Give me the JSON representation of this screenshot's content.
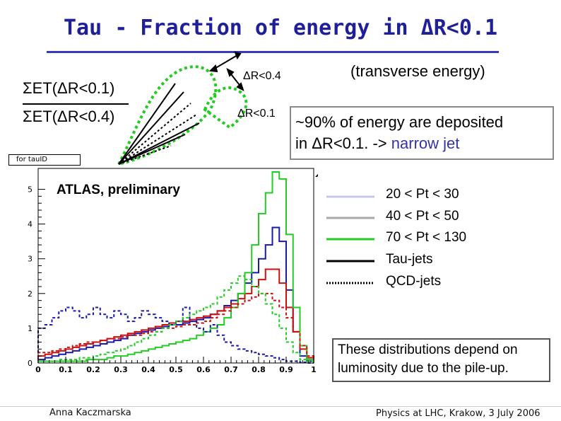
{
  "slide": {
    "title": "Tau - Fraction of energy in ΔR<0.1",
    "formula_numerator": "ΣET(ΔR<0.1)",
    "formula_denominator": "ΣET(ΔR<0.4)",
    "cone_outer_label": "ΔR<0.4",
    "cone_inner_label": "ΔR<0.1",
    "transverse_note": "(transverse energy)",
    "info_line1": "~90% of energy are deposited",
    "info_line2_prefix": "in ΔR<0.1. ->",
    "info_line2_highlight": "narrow jet",
    "pileup_note": "These distributions depend on luminosity due to the pile-up.",
    "tau_id_label": "for tauID",
    "atlas_label": "ATLAS, preliminary",
    "author": "Anna Kaczmarska",
    "conference": "Physics at LHC, Krakow,  3 July 2006"
  },
  "colors": {
    "title": "#1f1f99",
    "pt_20_30": "#c8c8ee",
    "pt_40_50": "#a8a8a8",
    "pt_70_130": "#22cc22",
    "tau": "#000000",
    "highlight": "#3333a3",
    "blue_hist": "#1a1aa8",
    "red_hist": "#cc1010",
    "green_hist": "#22cc22"
  },
  "chart_data": {
    "type": "line",
    "style": "step-histogram",
    "xlim": [
      0,
      1
    ],
    "ylim": [
      0,
      5.5
    ],
    "xticks": [
      0,
      0.1,
      0.2,
      0.3,
      0.4,
      0.5,
      0.6,
      0.7,
      0.8,
      0.9,
      1
    ],
    "xtick_labels": [
      "0",
      "0.1",
      "0.2",
      "0.3",
      "0.4",
      "0.5",
      "0.6",
      "0.7",
      "0.8",
      "0.9",
      "1"
    ],
    "yticks": [
      0,
      1,
      2,
      3,
      4,
      5
    ],
    "ytick_labels": [
      "0",
      "1",
      "2",
      "3",
      "4",
      "5"
    ],
    "legend": [
      {
        "label": "20 < Pt < 30",
        "color": "#c8c8ee",
        "style": "solid"
      },
      {
        "label": "40 < Pt < 50",
        "color": "#a8a8a8",
        "style": "solid"
      },
      {
        "label": "70 < Pt < 130",
        "color": "#22cc22",
        "style": "solid"
      },
      {
        "label": "Tau-jets",
        "color": "#000000",
        "style": "solid"
      },
      {
        "label": "QCD-jets",
        "color": "#000000",
        "style": "dotted"
      }
    ],
    "bin_edges": [
      0,
      0.025,
      0.05,
      0.075,
      0.1,
      0.125,
      0.15,
      0.175,
      0.2,
      0.225,
      0.25,
      0.275,
      0.3,
      0.325,
      0.35,
      0.375,
      0.4,
      0.425,
      0.45,
      0.475,
      0.5,
      0.525,
      0.55,
      0.575,
      0.6,
      0.625,
      0.65,
      0.675,
      0.7,
      0.725,
      0.75,
      0.775,
      0.8,
      0.825,
      0.85,
      0.875,
      0.9,
      0.925,
      0.95,
      0.975,
      1
    ],
    "series": [
      {
        "color": "#1a1aa8",
        "dash": "solid",
        "values": [
          0.1,
          0.15,
          0.2,
          0.25,
          0.3,
          0.35,
          0.4,
          0.45,
          0.5,
          0.55,
          0.6,
          0.65,
          0.7,
          0.8,
          0.85,
          0.9,
          0.95,
          1.0,
          1.05,
          1.1,
          1.1,
          1.15,
          1.2,
          1.25,
          1.3,
          1.4,
          1.5,
          1.65,
          1.8,
          2.0,
          2.3,
          2.6,
          3.0,
          3.4,
          3.9,
          3.5,
          2.1,
          0.9,
          0.2,
          0.05
        ]
      },
      {
        "color": "#cc1010",
        "dash": "solid",
        "values": [
          0.2,
          0.25,
          0.3,
          0.35,
          0.4,
          0.45,
          0.5,
          0.55,
          0.6,
          0.65,
          0.7,
          0.75,
          0.8,
          0.85,
          0.9,
          0.95,
          1.0,
          1.05,
          1.1,
          1.15,
          1.2,
          1.2,
          1.25,
          1.3,
          1.35,
          1.4,
          1.5,
          1.6,
          1.7,
          1.85,
          2.0,
          2.2,
          2.4,
          2.7,
          2.7,
          2.3,
          1.6,
          0.9,
          0.4,
          0.15
        ]
      },
      {
        "color": "#22cc22",
        "dash": "solid",
        "values": [
          0.05,
          0.05,
          0.05,
          0.05,
          0.05,
          0.05,
          0.05,
          0.1,
          0.1,
          0.1,
          0.15,
          0.2,
          0.2,
          0.25,
          0.3,
          0.35,
          0.4,
          0.45,
          0.5,
          0.55,
          0.6,
          0.65,
          0.7,
          0.8,
          0.9,
          1.0,
          1.1,
          1.3,
          1.6,
          2.0,
          2.6,
          3.4,
          4.3,
          4.9,
          5.5,
          5.3,
          3.7,
          1.6,
          0.5,
          0.1
        ]
      },
      {
        "color": "#1a1aa8",
        "dash": "dashed",
        "values": [
          1.0,
          1.1,
          1.3,
          1.5,
          1.6,
          1.5,
          1.3,
          1.4,
          1.6,
          1.4,
          1.3,
          1.5,
          1.4,
          1.2,
          1.3,
          1.5,
          1.4,
          1.3,
          1.2,
          1.1,
          1.2,
          1.6,
          1.2,
          1.0,
          0.9,
          1.1,
          0.8,
          0.6,
          0.5,
          0.4,
          0.35,
          0.3,
          0.25,
          0.2,
          0.15,
          0.1,
          0.05,
          0.05,
          0.02,
          0.0
        ]
      },
      {
        "color": "#cc1010",
        "dash": "dashed",
        "values": [
          0.3,
          0.3,
          0.35,
          0.4,
          0.45,
          0.5,
          0.55,
          0.6,
          0.6,
          0.65,
          0.7,
          0.7,
          0.75,
          0.8,
          0.8,
          0.85,
          0.9,
          0.9,
          1.0,
          1.0,
          1.05,
          1.1,
          1.1,
          1.15,
          1.2,
          1.3,
          1.4,
          1.5,
          1.6,
          1.7,
          1.8,
          1.9,
          2.0,
          2.0,
          1.8,
          1.6,
          1.3,
          0.9,
          0.5,
          0.2
        ]
      },
      {
        "color": "#22cc22",
        "dash": "dashed",
        "values": [
          0.05,
          0.05,
          0.05,
          0.1,
          0.1,
          0.1,
          0.15,
          0.15,
          0.2,
          0.25,
          0.3,
          0.35,
          0.4,
          0.5,
          0.6,
          0.7,
          0.8,
          0.9,
          1.0,
          1.1,
          1.2,
          1.3,
          1.4,
          1.5,
          1.6,
          1.7,
          1.9,
          2.1,
          2.3,
          2.5,
          2.4,
          2.2,
          2.0,
          1.7,
          1.4,
          1.0,
          0.6,
          0.3,
          0.1,
          0.05
        ]
      }
    ]
  }
}
